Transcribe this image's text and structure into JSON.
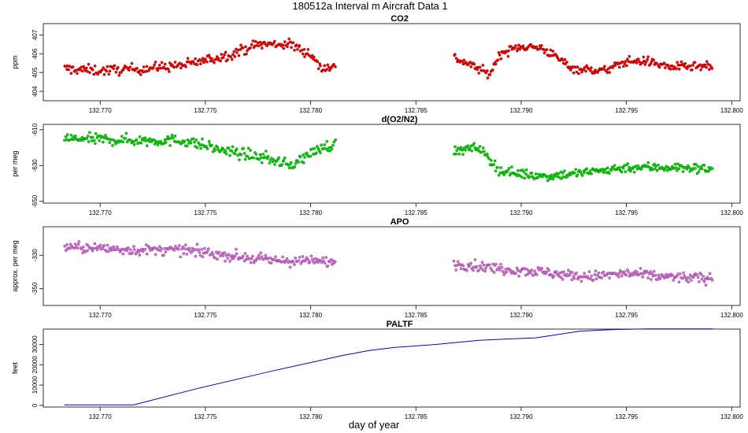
{
  "figure": {
    "title": "180512a   Interval m Aircraft Data 1",
    "xlabel": "day of year"
  },
  "chart_data": [
    {
      "type": "scatter",
      "title": "CO2",
      "ylabel": "ppm",
      "color": "#ff0000",
      "xlim": [
        132.7673,
        132.8004
      ],
      "ylim": [
        403.5,
        407.6
      ],
      "yticks": [
        404,
        405,
        406,
        407
      ],
      "xticks": [
        132.77,
        132.775,
        132.78,
        132.785,
        132.79,
        132.795,
        132.8
      ],
      "xtick_labels": [
        "132.770",
        "132.775",
        "132.780",
        "132.785",
        "132.790",
        "132.795",
        "132.800"
      ],
      "segments": [
        {
          "x_start": 132.7683,
          "x_end": 132.7812,
          "anchors": [
            [
              132.7683,
              405.2
            ],
            [
              132.77,
              405.1
            ],
            [
              132.772,
              405.2
            ],
            [
              132.774,
              405.4
            ],
            [
              132.776,
              405.9
            ],
            [
              132.7775,
              406.5
            ],
            [
              132.779,
              406.5
            ],
            [
              132.78,
              406.0
            ],
            [
              132.7805,
              405.2
            ],
            [
              132.7812,
              405.4
            ]
          ],
          "noise": 0.35,
          "count": 260
        },
        {
          "x_start": 132.7868,
          "x_end": 132.7991,
          "anchors": [
            [
              132.7868,
              405.8
            ],
            [
              132.7878,
              405.3
            ],
            [
              132.7885,
              404.9
            ],
            [
              132.789,
              406.0
            ],
            [
              132.79,
              406.4
            ],
            [
              132.791,
              406.3
            ],
            [
              132.7925,
              405.2
            ],
            [
              132.794,
              405.1
            ],
            [
              132.795,
              405.6
            ],
            [
              132.796,
              405.6
            ],
            [
              132.797,
              405.3
            ],
            [
              132.7991,
              405.3
            ]
          ],
          "noise": 0.3,
          "count": 260
        }
      ]
    },
    {
      "type": "scatter",
      "title": "d(O2/N2)",
      "ylabel": "per meg",
      "color": "#00dd00",
      "xlim": [
        132.7673,
        132.8004
      ],
      "ylim": [
        -651,
        -607
      ],
      "yticks": [
        -650,
        -630,
        -610
      ],
      "xticks": [
        132.77,
        132.775,
        132.78,
        132.785,
        132.79,
        132.795,
        132.8
      ],
      "xtick_labels": [
        "132.770",
        "132.775",
        "132.780",
        "132.785",
        "132.790",
        "132.795",
        "132.800"
      ],
      "segments": [
        {
          "x_start": 132.7683,
          "x_end": 132.7812,
          "anchors": [
            [
              132.7683,
              -615
            ],
            [
              132.772,
              -616
            ],
            [
              132.774,
              -616
            ],
            [
              132.776,
              -622
            ],
            [
              132.778,
              -626
            ],
            [
              132.779,
              -630
            ],
            [
              132.7805,
              -620
            ],
            [
              132.7812,
              -618
            ]
          ],
          "noise": 4,
          "count": 260
        },
        {
          "x_start": 132.7868,
          "x_end": 132.7991,
          "anchors": [
            [
              132.7868,
              -622
            ],
            [
              132.788,
              -620
            ],
            [
              132.789,
              -633
            ],
            [
              132.791,
              -636
            ],
            [
              132.793,
              -634
            ],
            [
              132.795,
              -631
            ],
            [
              132.797,
              -631
            ],
            [
              132.7991,
              -632
            ]
          ],
          "noise": 3.5,
          "count": 260
        }
      ]
    },
    {
      "type": "scatter",
      "title": "APO",
      "ylabel": "approx. per meg",
      "color": "#e070e0",
      "xlim": [
        132.7673,
        132.8004
      ],
      "ylim": [
        -360,
        -313
      ],
      "yticks": [
        -350,
        -330
      ],
      "xticks": [
        132.77,
        132.775,
        132.78,
        132.785,
        132.79,
        132.795,
        132.8
      ],
      "xtick_labels": [
        "132.770",
        "132.775",
        "132.780",
        "132.785",
        "132.790",
        "132.795",
        "132.800"
      ],
      "segments": [
        {
          "x_start": 132.7683,
          "x_end": 132.7812,
          "anchors": [
            [
              132.7683,
              -325
            ],
            [
              132.772,
              -327
            ],
            [
              132.774,
              -327
            ],
            [
              132.776,
              -330
            ],
            [
              132.778,
              -333
            ],
            [
              132.7812,
              -334
            ]
          ],
          "noise": 4,
          "count": 260
        },
        {
          "x_start": 132.7868,
          "x_end": 132.7991,
          "anchors": [
            [
              132.7868,
              -335
            ],
            [
              132.789,
              -338
            ],
            [
              132.791,
              -340
            ],
            [
              132.793,
              -343
            ],
            [
              132.795,
              -341
            ],
            [
              132.797,
              -343
            ],
            [
              132.7991,
              -344
            ]
          ],
          "noise": 4,
          "count": 260
        }
      ]
    },
    {
      "type": "line",
      "title": "PALTF",
      "ylabel": "feet",
      "color": "#0000dd",
      "xlim": [
        132.7673,
        132.8004
      ],
      "ylim": [
        -800,
        37500
      ],
      "yticks": [
        0,
        10000,
        20000,
        30000
      ],
      "xticks": [
        132.77,
        132.775,
        132.78,
        132.785,
        132.79,
        132.795,
        132.8
      ],
      "xtick_labels": [
        "132.770",
        "132.775",
        "132.780",
        "132.785",
        "132.790",
        "132.795",
        "132.800"
      ],
      "x": [
        132.7683,
        132.7716,
        132.7745,
        132.778,
        132.7815,
        132.7828,
        132.784,
        132.786,
        132.788,
        132.7907,
        132.7928,
        132.7945,
        132.796,
        132.7991
      ],
      "y": [
        300,
        300,
        8000,
        16500,
        24500,
        27000,
        28500,
        30000,
        32000,
        33200,
        36500,
        37300,
        37600,
        37600
      ]
    }
  ]
}
